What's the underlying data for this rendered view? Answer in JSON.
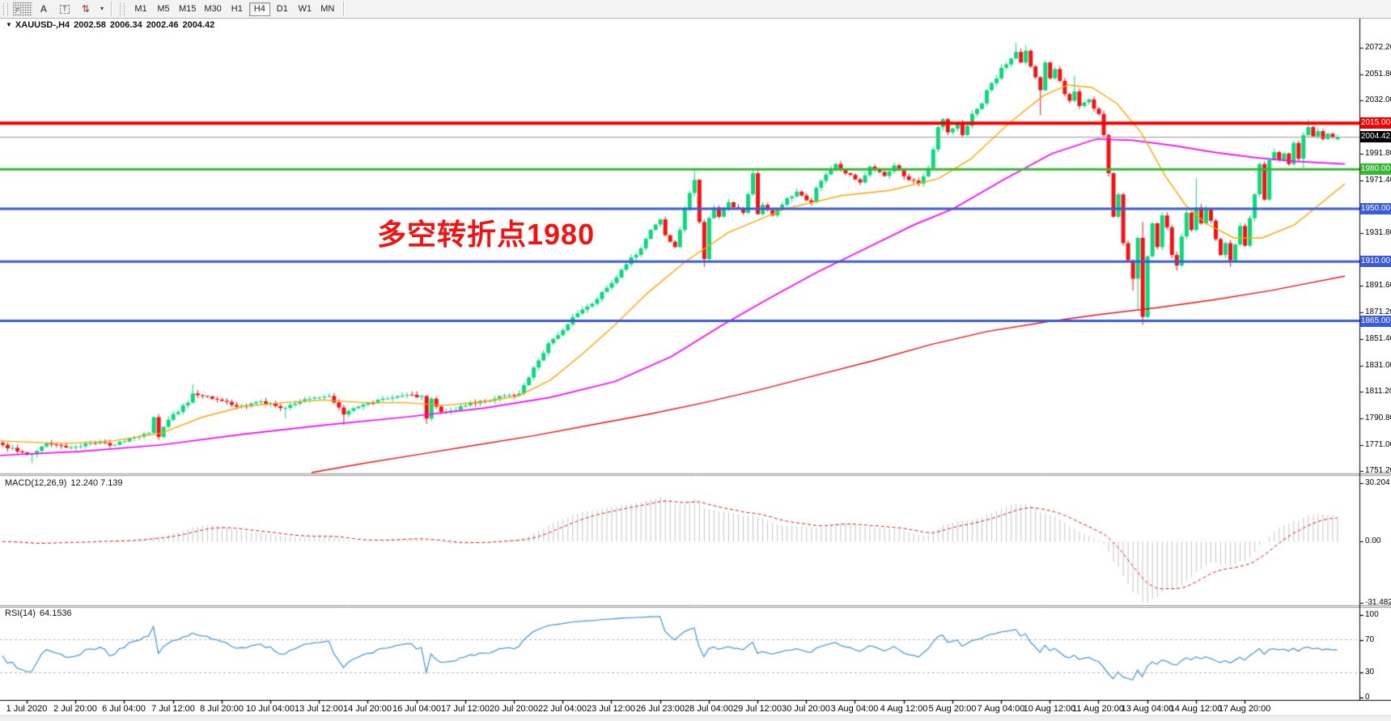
{
  "toolbar": {
    "tools": [
      {
        "id": "grid-dots-icon",
        "glyph": "F"
      },
      {
        "id": "text-label-icon",
        "glyph": "A"
      },
      {
        "id": "text-box-icon",
        "glyph": "T"
      },
      {
        "id": "color-swap-icon",
        "glyph": "⇅"
      },
      {
        "id": "dropdown-caret-icon",
        "glyph": "▾"
      }
    ],
    "timeframes": [
      "M1",
      "M5",
      "M15",
      "M30",
      "H1",
      "H4",
      "D1",
      "W1",
      "MN"
    ],
    "active_timeframe": "H4"
  },
  "symbol_line": {
    "dropdown_glyph": "▼",
    "symbol": "XAUUSD-,H4",
    "open": "2002.58",
    "high": "2006.34",
    "low": "2002.46",
    "close": "2004.42"
  },
  "annotation": {
    "text": "多空转折点1980",
    "color": "#ee1414"
  },
  "macd_header": {
    "name": "MACD(12,26,9)",
    "values": "12.240 7.139"
  },
  "rsi_header": {
    "name": "RSI(14)",
    "values": "64.1536"
  },
  "chart_data": {
    "type": "candlestick",
    "title": "XAUUSD- H4",
    "ylim": [
      1751.2,
      2072.2
    ],
    "grid": false,
    "price_axis_ticks": [
      "2072.20",
      "2051.80",
      "2032.00",
      "2011.80",
      "1991.80",
      "1971.40",
      "1931.80",
      "1891.60",
      "1871.20",
      "1851.40",
      "1831.00",
      "1811.20",
      "1790.80",
      "1771.00",
      "1751.20"
    ],
    "price_tick_values": [
      2072.2,
      2051.8,
      2032.0,
      2011.8,
      1991.8,
      1971.4,
      1931.8,
      1891.6,
      1871.2,
      1851.4,
      1831.0,
      1811.2,
      1790.8,
      1771.0,
      1751.2
    ],
    "levels": [
      {
        "price": 2015.0,
        "label": "2015.00",
        "color": "#f40000",
        "width": 4
      },
      {
        "price": 1980.0,
        "label": "1980.00",
        "color": "#35b935",
        "width": 3
      },
      {
        "price": 1950.0,
        "label": "1950.00",
        "color": "#3c5bd8",
        "width": 3
      },
      {
        "price": 1910.0,
        "label": "1910.00",
        "color": "#3c5bd8",
        "width": 3
      },
      {
        "price": 1865.0,
        "label": "1865.00",
        "color": "#3c5bd8",
        "width": 3
      }
    ],
    "current_price": {
      "value": 2004.42,
      "label": "2004.42",
      "line_color": "#9a9a9a",
      "box_color": "#000000"
    },
    "x_labels": [
      "1 Jul 2020",
      "2 Jul 20:00",
      "6 Jul 04:00",
      "7 Jul 12:00",
      "8 Jul 20:00",
      "10 Jul 04:00",
      "13 Jul 12:00",
      "14 Jul 20:00",
      "16 Jul 04:00",
      "17 Jul 12:00",
      "20 Jul 20:00",
      "22 Jul 04:00",
      "23 Jul 12:00",
      "26 Jul 23:00",
      "28 Jul 04:00",
      "29 Jul 12:00",
      "30 Jul 20:00",
      "3 Aug 04:00",
      "4 Aug 12:00",
      "5 Aug 20:00",
      "7 Aug 04:00",
      "10 Aug 12:00",
      "11 Aug 20:00",
      "13 Aug 04:00",
      "14 Aug 12:00",
      "17 Aug 20:00"
    ],
    "colors": {
      "up": "#0bd97c",
      "down": "#f01414"
    },
    "candles": {
      "count": 275,
      "last_candle": [
        2002.58,
        2006.34,
        2002.46,
        2004.42
      ],
      "close_anchors": [
        [
          0,
          1771
        ],
        [
          3,
          1766
        ],
        [
          6,
          1764
        ],
        [
          9,
          1772
        ],
        [
          13,
          1769
        ],
        [
          16,
          1770
        ],
        [
          20,
          1773
        ],
        [
          23,
          1771
        ],
        [
          26,
          1776
        ],
        [
          30,
          1780
        ],
        [
          31,
          1792
        ],
        [
          32,
          1777
        ],
        [
          34,
          1790
        ],
        [
          38,
          1803
        ],
        [
          39,
          1810
        ],
        [
          41,
          1808
        ],
        [
          43,
          1806
        ],
        [
          48,
          1800
        ],
        [
          53,
          1804
        ],
        [
          58,
          1799
        ],
        [
          63,
          1806
        ],
        [
          67,
          1808
        ],
        [
          70,
          1794
        ],
        [
          73,
          1800
        ],
        [
          78,
          1806
        ],
        [
          83,
          1809
        ],
        [
          86,
          1808
        ],
        [
          87,
          1791
        ],
        [
          88,
          1806
        ],
        [
          90,
          1796
        ],
        [
          92,
          1797
        ],
        [
          96,
          1803
        ],
        [
          101,
          1806
        ],
        [
          106,
          1810
        ],
        [
          108,
          1822
        ],
        [
          110,
          1835
        ],
        [
          112,
          1848
        ],
        [
          115,
          1858
        ],
        [
          117,
          1868
        ],
        [
          121,
          1878
        ],
        [
          123,
          1887
        ],
        [
          126,
          1898
        ],
        [
          128,
          1908
        ],
        [
          131,
          1920
        ],
        [
          133,
          1934
        ],
        [
          135,
          1942
        ],
        [
          136,
          1930
        ],
        [
          138,
          1921
        ],
        [
          139,
          1934
        ],
        [
          140,
          1950
        ],
        [
          141,
          1962
        ],
        [
          142,
          1972
        ],
        [
          143,
          1940
        ],
        [
          144,
          1912
        ],
        [
          145,
          1943
        ],
        [
          146,
          1951
        ],
        [
          147,
          1944
        ],
        [
          149,
          1955
        ],
        [
          152,
          1947
        ],
        [
          154,
          1977
        ],
        [
          155,
          1946
        ],
        [
          156,
          1953
        ],
        [
          158,
          1945
        ],
        [
          161,
          1958
        ],
        [
          163,
          1963
        ],
        [
          166,
          1955
        ],
        [
          167,
          1966
        ],
        [
          169,
          1976
        ],
        [
          171,
          1984
        ],
        [
          173,
          1977
        ],
        [
          176,
          1970
        ],
        [
          178,
          1982
        ],
        [
          181,
          1975
        ],
        [
          183,
          1983
        ],
        [
          186,
          1972
        ],
        [
          188,
          1969
        ],
        [
          190,
          1981
        ],
        [
          191,
          1995
        ],
        [
          192,
          2012
        ],
        [
          193,
          2018
        ],
        [
          194,
          2008
        ],
        [
          196,
          2015
        ],
        [
          197,
          2006
        ],
        [
          198,
          2013
        ],
        [
          199,
          2022
        ],
        [
          201,
          2030
        ],
        [
          202,
          2040
        ],
        [
          204,
          2049
        ],
        [
          205,
          2057
        ],
        [
          207,
          2064
        ],
        [
          208,
          2069
        ],
        [
          209,
          2061
        ],
        [
          210,
          2070
        ],
        [
          211,
          2058
        ],
        [
          213,
          2040
        ],
        [
          214,
          2061
        ],
        [
          215,
          2049
        ],
        [
          216,
          2056
        ],
        [
          218,
          2037
        ],
        [
          219,
          2032
        ],
        [
          220,
          2039
        ],
        [
          221,
          2028
        ],
        [
          223,
          2033
        ],
        [
          224,
          2026
        ],
        [
          225,
          2022
        ],
        [
          226,
          2006
        ],
        [
          227,
          1977
        ],
        [
          228,
          1944
        ],
        [
          229,
          1961
        ],
        [
          230,
          1924
        ],
        [
          232,
          1897
        ],
        [
          233,
          1928
        ],
        [
          234,
          1868
        ],
        [
          235,
          1914
        ],
        [
          236,
          1939
        ],
        [
          237,
          1921
        ],
        [
          238,
          1945
        ],
        [
          239,
          1936
        ],
        [
          240,
          1915
        ],
        [
          241,
          1907
        ],
        [
          242,
          1929
        ],
        [
          243,
          1947
        ],
        [
          244,
          1934
        ],
        [
          245,
          1951
        ],
        [
          246,
          1939
        ],
        [
          247,
          1950
        ],
        [
          248,
          1941
        ],
        [
          249,
          1927
        ],
        [
          250,
          1915
        ],
        [
          251,
          1924
        ],
        [
          252,
          1911
        ],
        [
          253,
          1923
        ],
        [
          254,
          1937
        ],
        [
          255,
          1922
        ],
        [
          256,
          1943
        ],
        [
          257,
          1961
        ],
        [
          258,
          1984
        ],
        [
          259,
          1957
        ],
        [
          260,
          1987
        ],
        [
          261,
          1993
        ],
        [
          262,
          1987
        ],
        [
          263,
          1992
        ],
        [
          264,
          1984
        ],
        [
          265,
          2000
        ],
        [
          266,
          1988
        ],
        [
          267,
          2006
        ],
        [
          268,
          2012
        ],
        [
          269,
          2005
        ],
        [
          270,
          2009
        ],
        [
          271,
          2003
        ],
        [
          272,
          2007
        ],
        [
          273,
          2004
        ],
        [
          274,
          2004.4
        ]
      ],
      "spikes": [
        [
          6,
          null,
          1757
        ],
        [
          39,
          1817,
          null
        ],
        [
          58,
          null,
          1791
        ],
        [
          70,
          null,
          1786
        ],
        [
          87,
          null,
          1787
        ],
        [
          142,
          1981,
          null
        ],
        [
          144,
          null,
          1906
        ],
        [
          154,
          1981,
          null
        ],
        [
          208,
          2076,
          null
        ],
        [
          210,
          2074,
          null
        ],
        [
          213,
          null,
          2021
        ],
        [
          220,
          2051,
          null
        ],
        [
          232,
          null,
          1888
        ],
        [
          233,
          null,
          1874
        ],
        [
          234,
          1940,
          1862
        ],
        [
          241,
          null,
          1903
        ],
        [
          245,
          1973,
          null
        ],
        [
          252,
          null,
          1906
        ],
        [
          267,
          null,
          1980
        ],
        [
          268,
          2018,
          null
        ]
      ]
    },
    "moving_averages": [
      {
        "name": "slow-ma",
        "color": "#ee1111",
        "width": 1.4,
        "points": [
          [
            385,
            1750
          ],
          [
            450,
            1757
          ],
          [
            520,
            1764
          ],
          [
            590,
            1771
          ],
          [
            660,
            1778
          ],
          [
            730,
            1786
          ],
          [
            800,
            1794
          ],
          [
            870,
            1803
          ],
          [
            940,
            1813
          ],
          [
            1010,
            1824
          ],
          [
            1080,
            1835
          ],
          [
            1150,
            1847
          ],
          [
            1220,
            1857
          ],
          [
            1290,
            1864
          ],
          [
            1360,
            1870
          ],
          [
            1430,
            1875
          ],
          [
            1500,
            1881
          ],
          [
            1570,
            1888
          ],
          [
            1620,
            1894
          ],
          [
            1662,
            1899
          ]
        ]
      },
      {
        "name": "medium-ma",
        "color": "#ff00ff",
        "width": 1.7,
        "points": [
          [
            0,
            1763
          ],
          [
            100,
            1766
          ],
          [
            200,
            1771
          ],
          [
            300,
            1779
          ],
          [
            400,
            1786
          ],
          [
            500,
            1792
          ],
          [
            600,
            1799
          ],
          [
            680,
            1807
          ],
          [
            760,
            1819
          ],
          [
            830,
            1838
          ],
          [
            893,
            1862
          ],
          [
            950,
            1882
          ],
          [
            1010,
            1902
          ],
          [
            1070,
            1920
          ],
          [
            1130,
            1938
          ],
          [
            1178,
            1950
          ],
          [
            1240,
            1972
          ],
          [
            1300,
            1992
          ],
          [
            1355,
            2003
          ],
          [
            1400,
            2002
          ],
          [
            1450,
            1998
          ],
          [
            1500,
            1993
          ],
          [
            1550,
            1989
          ],
          [
            1600,
            1986
          ],
          [
            1662,
            1984
          ]
        ]
      },
      {
        "name": "fast-ma",
        "color": "#ffa500",
        "width": 1.4,
        "points": [
          [
            0,
            1774
          ],
          [
            80,
            1772
          ],
          [
            140,
            1774
          ],
          [
            200,
            1780
          ],
          [
            250,
            1792
          ],
          [
            300,
            1800
          ],
          [
            350,
            1803
          ],
          [
            400,
            1805
          ],
          [
            450,
            1803
          ],
          [
            500,
            1803
          ],
          [
            550,
            1801
          ],
          [
            600,
            1804
          ],
          [
            640,
            1808
          ],
          [
            680,
            1820
          ],
          [
            720,
            1840
          ],
          [
            760,
            1862
          ],
          [
            800,
            1886
          ],
          [
            847,
            1910
          ],
          [
            900,
            1932
          ],
          [
            970,
            1950
          ],
          [
            1040,
            1960
          ],
          [
            1100,
            1964
          ],
          [
            1160,
            1973
          ],
          [
            1200,
            1988
          ],
          [
            1247,
            2015
          ],
          [
            1290,
            2036
          ],
          [
            1320,
            2044
          ],
          [
            1350,
            2042
          ],
          [
            1380,
            2030
          ],
          [
            1410,
            2008
          ],
          [
            1440,
            1975
          ],
          [
            1465,
            1953
          ],
          [
            1490,
            1939
          ],
          [
            1525,
            1928
          ],
          [
            1560,
            1928
          ],
          [
            1600,
            1938
          ],
          [
            1640,
            1958
          ],
          [
            1662,
            1969
          ]
        ]
      }
    ],
    "indicators": [
      {
        "name": "MACD",
        "params": "(12,26,9)",
        "display_values": [
          "12.240",
          "7.139"
        ],
        "scale_labels": [
          "30.204",
          "0.00",
          "-31.482"
        ],
        "scale_values": [
          30.204,
          0,
          -31.482
        ],
        "periods": [
          12,
          26,
          9
        ],
        "histogram_color": "#c6c6c6",
        "signal_color": "#e01818"
      },
      {
        "name": "RSI",
        "params": "(14)",
        "display_values": [
          "64.1536"
        ],
        "scale_labels": [
          "100",
          "70",
          "30",
          "0"
        ],
        "scale_values": [
          100,
          70,
          30,
          0
        ],
        "period": 14,
        "levels": [
          70,
          30
        ],
        "line_color": "#4d9cdd",
        "level_color": "#b4b4b4"
      }
    ]
  }
}
